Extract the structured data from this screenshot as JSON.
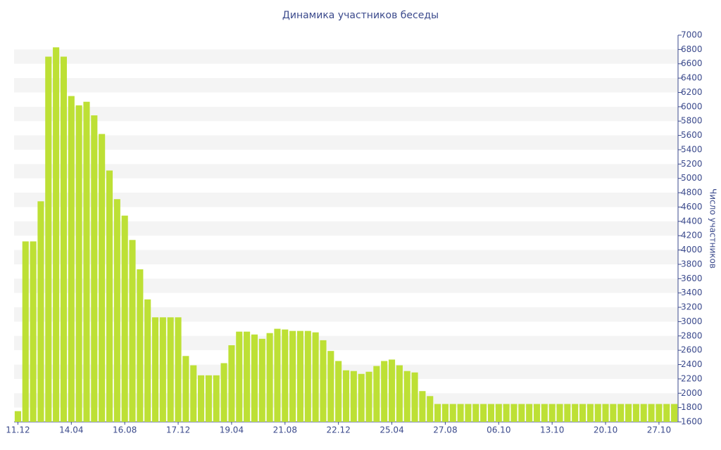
{
  "chart_data": {
    "type": "bar",
    "title": "Динамика участников беседы",
    "y_label": "Число участников",
    "categories": [
      "11.12",
      null,
      null,
      null,
      null,
      null,
      null,
      "14.04",
      null,
      null,
      null,
      null,
      null,
      null,
      "16.08",
      null,
      null,
      null,
      null,
      null,
      null,
      "17.12",
      null,
      null,
      null,
      null,
      null,
      null,
      "19.04",
      null,
      null,
      null,
      null,
      null,
      null,
      "21.08",
      null,
      null,
      null,
      null,
      null,
      null,
      "22.12",
      null,
      null,
      null,
      null,
      null,
      null,
      "25.04",
      null,
      null,
      null,
      null,
      null,
      null,
      "27.08",
      null,
      null,
      null,
      null,
      null,
      null,
      "06.10",
      null,
      null,
      null,
      null,
      null,
      null,
      "13.10",
      null,
      null,
      null,
      null,
      null,
      null,
      "20.10",
      null,
      null,
      null,
      null,
      null,
      null,
      "27.10",
      null,
      null
    ],
    "values": [
      1750,
      4120,
      4120,
      4680,
      6700,
      6830,
      6700,
      6150,
      6020,
      6070,
      5880,
      5620,
      5110,
      4710,
      4480,
      4140,
      3730,
      3310,
      3060,
      3060,
      3060,
      3060,
      2520,
      2390,
      2250,
      2250,
      2250,
      2420,
      2670,
      2860,
      2860,
      2820,
      2760,
      2840,
      2900,
      2890,
      2870,
      2870,
      2870,
      2850,
      2740,
      2590,
      2450,
      2320,
      2310,
      2270,
      2300,
      2380,
      2450,
      2470,
      2390,
      2310,
      2290,
      2030,
      1960,
      1850,
      1850,
      1850,
      1850,
      1850,
      1850,
      1850,
      1850,
      1850,
      1850,
      1850,
      1850,
      1850,
      1850,
      1850,
      1850,
      1850,
      1850,
      1850,
      1850,
      1850,
      1850,
      1850,
      1850,
      1850,
      1850,
      1850,
      1850,
      1850,
      1850,
      1850,
      1850
    ],
    "color": "#bde035",
    "ylim": [
      1600,
      7000
    ],
    "yticks": [
      1600,
      1800,
      2000,
      2200,
      2400,
      2600,
      2800,
      3000,
      3200,
      3400,
      3600,
      3800,
      4000,
      4200,
      4400,
      4600,
      4800,
      5000,
      5200,
      5400,
      5600,
      5800,
      6000,
      6200,
      6400,
      6600,
      6800,
      7000
    ],
    "grid": true
  }
}
